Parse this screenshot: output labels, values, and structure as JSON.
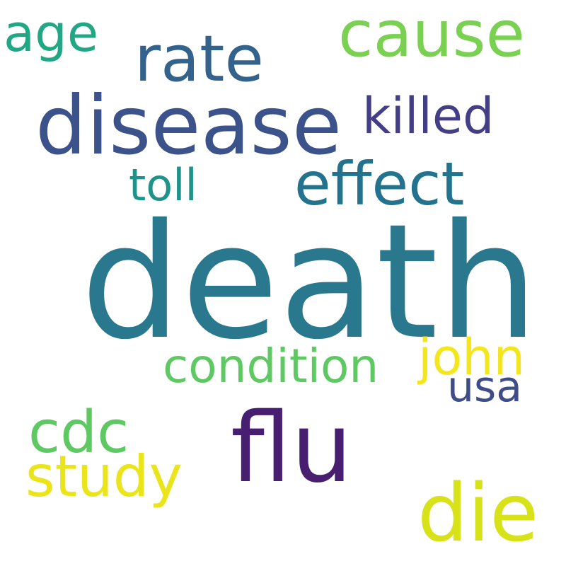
{
  "words": {
    "death": {
      "text": "death",
      "color": "#2a788e"
    },
    "disease": {
      "text": "disease",
      "color": "#3b528b"
    },
    "flu": {
      "text": "flu",
      "color": "#481f70"
    },
    "die": {
      "text": "die",
      "color": "#d8e219"
    },
    "cause": {
      "text": "cause",
      "color": "#7ad151"
    },
    "rate": {
      "text": "rate",
      "color": "#33638d"
    },
    "effect": {
      "text": "effect",
      "color": "#23728e"
    },
    "cdc": {
      "text": "cdc",
      "color": "#5ec962"
    },
    "study": {
      "text": "study",
      "color": "#eae51a"
    },
    "age": {
      "text": "age",
      "color": "#22a785"
    },
    "killed": {
      "text": "killed",
      "color": "#433e85"
    },
    "john": {
      "text": "john",
      "color": "#f4e61e"
    },
    "condition": {
      "text": "condition",
      "color": "#5ec962"
    },
    "toll": {
      "text": "toll",
      "color": "#1f938b"
    },
    "usa": {
      "text": "usa",
      "color": "#3e4c8a"
    }
  }
}
